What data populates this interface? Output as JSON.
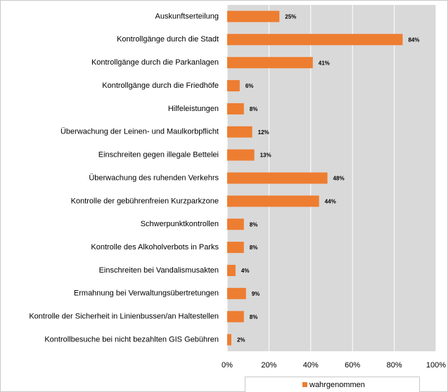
{
  "chart_data": {
    "type": "hbar",
    "categories": [
      "Auskunftserteilung",
      "Kontrollgänge durch die Stadt",
      "Kontrollgänge durch die Parkanlagen",
      "Kontrollgänge durch die Friedhöfe",
      "Hilfeleistungen",
      "Überwachung der Leinen- und Maulkorbpflicht",
      "Einschreiten gegen illegale Bettelei",
      "Überwachung des ruhenden Verkehrs",
      "Kontrolle der gebührenfreien Kurzparkzone",
      "Schwerpunktkontrollen",
      "Kontrolle des Alkoholverbots in Parks",
      "Einschreiten bei Vandalismusakten",
      "Ermahnung bei Verwaltungsübertretungen",
      "Kontrolle der Sicherheit in Linienbussen/an Haltestellen",
      "Kontrollbesuche bei nicht bezahlten GIS Gebühren"
    ],
    "series": [
      {
        "name": "wahrgenommen",
        "color": "#ed7d31",
        "values": [
          25,
          84,
          41,
          6,
          8,
          12,
          13,
          48,
          44,
          8,
          8,
          4,
          9,
          8,
          2
        ],
        "value_labels": [
          "25%",
          "84%",
          "41%",
          "6%",
          "8%",
          "12%",
          "13%",
          "48%",
          "44%",
          "8%",
          "8%",
          "4%",
          "9%",
          "8%",
          "2%"
        ]
      }
    ],
    "xlim": [
      0,
      100
    ],
    "xticks": [
      {
        "value": 0,
        "label": "0%"
      },
      {
        "value": 20,
        "label": "20%"
      },
      {
        "value": 40,
        "label": "40%"
      },
      {
        "value": 60,
        "label": "60%"
      },
      {
        "value": 80,
        "label": "80%"
      },
      {
        "value": 100,
        "label": "100%"
      }
    ],
    "grid": true,
    "legend": "bottom"
  }
}
